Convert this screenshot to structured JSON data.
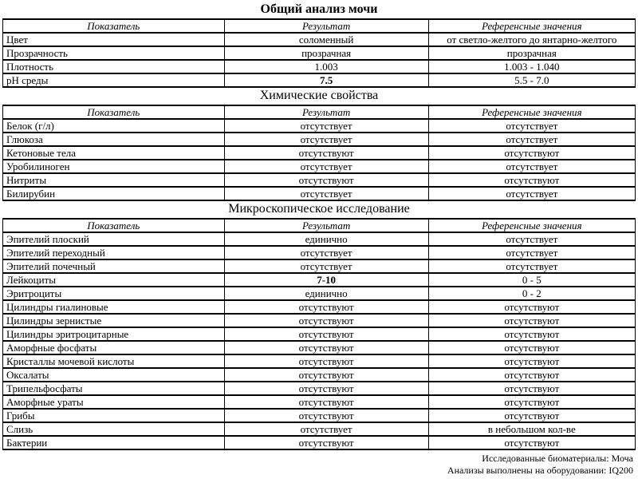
{
  "page": {
    "background_color": "#ffffff",
    "text_color": "#000000",
    "border_color": "#000000"
  },
  "columns": {
    "indicator": "Показатель",
    "result": "Результат",
    "reference": "Референсные значения"
  },
  "sections": [
    {
      "title": "Общий анализ мочи",
      "title_bold": true,
      "rows": [
        {
          "indicator": "Цвет",
          "result": "соломенный",
          "reference": "от светло-желтого до янтарно-желтого",
          "result_bold": false
        },
        {
          "indicator": "Прозрачность",
          "result": "прозрачная",
          "reference": "прозрачная",
          "result_bold": false
        },
        {
          "indicator": "Плотность",
          "result": "1.003",
          "reference": "1.003 - 1.040",
          "result_bold": false
        },
        {
          "indicator": "pH среды",
          "result": "7.5",
          "reference": "5.5 - 7.0",
          "result_bold": true
        }
      ]
    },
    {
      "title": "Химические свойства",
      "title_bold": false,
      "rows": [
        {
          "indicator": "Белок (г/л)",
          "result": "отсутствует",
          "reference": "отсутствует",
          "result_bold": false
        },
        {
          "indicator": "Глюкоза",
          "result": "отсутствует",
          "reference": "отсутствует",
          "result_bold": false
        },
        {
          "indicator": "Кетоновые тела",
          "result": "отсутствуют",
          "reference": "отсутствуют",
          "result_bold": false
        },
        {
          "indicator": "Уробилиноген",
          "result": "отсутствует",
          "reference": "отсутствует",
          "result_bold": false
        },
        {
          "indicator": "Нитриты",
          "result": "отсутствуют",
          "reference": "отсутствуют",
          "result_bold": false
        },
        {
          "indicator": "Билирубин",
          "result": "отсутствует",
          "reference": "отсутствует",
          "result_bold": false
        }
      ]
    },
    {
      "title": "Микроскопическое исследование",
      "title_bold": false,
      "rows": [
        {
          "indicator": "Эпителий плоский",
          "result": "единично",
          "reference": "отсутствует",
          "result_bold": false
        },
        {
          "indicator": "Эпителий переходный",
          "result": "отсутствует",
          "reference": "отсутствует",
          "result_bold": false
        },
        {
          "indicator": "Эпителий почечный",
          "result": "отсутствует",
          "reference": "отсутствует",
          "result_bold": false
        },
        {
          "indicator": "Лейкоциты",
          "result": "7-10",
          "reference": "0 - 5",
          "result_bold": true
        },
        {
          "indicator": "Эритроциты",
          "result": "единично",
          "reference": "0 - 2",
          "result_bold": false
        },
        {
          "indicator": "Цилиндры гиалиновые",
          "result": "отсутствуют",
          "reference": "отсутствуют",
          "result_bold": false
        },
        {
          "indicator": "Цилиндры зернистые",
          "result": "отсутствуют",
          "reference": "отсутствуют",
          "result_bold": false
        },
        {
          "indicator": "Цилиндры эритроцитарные",
          "result": "отсутствуют",
          "reference": "отсутствуют",
          "result_bold": false
        },
        {
          "indicator": "Аморфные фосфаты",
          "result": "отсутствуют",
          "reference": "отсутствуют",
          "result_bold": false
        },
        {
          "indicator": "Кристаллы мочевой кислоты",
          "result": "отсутствуют",
          "reference": "отсутствуют",
          "result_bold": false
        },
        {
          "indicator": "Оксалаты",
          "result": "отсутствуют",
          "reference": "отсутствуют",
          "result_bold": false
        },
        {
          "indicator": "Трипельфосфаты",
          "result": "отсутствуют",
          "reference": "отсутствуют",
          "result_bold": false
        },
        {
          "indicator": "Аморфные ураты",
          "result": "отсутствуют",
          "reference": "отсутствуют",
          "result_bold": false
        },
        {
          "indicator": "Грибы",
          "result": "отсутствуют",
          "reference": "отсутствуют",
          "result_bold": false
        },
        {
          "indicator": "Слизь",
          "result": "отсутствует",
          "reference": "в небольшом кол-ве",
          "result_bold": false
        },
        {
          "indicator": "Бактерии",
          "result": "отсутствуют",
          "reference": "отсутствуют",
          "result_bold": false
        }
      ]
    }
  ],
  "footer": {
    "biomaterials": "Исследованные биоматериалы: Моча",
    "equipment": "Анализы выполнены на оборудовании: IQ200"
  }
}
